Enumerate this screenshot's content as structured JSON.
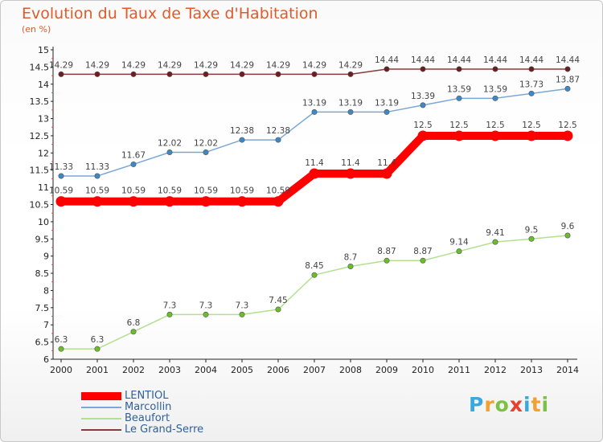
{
  "header": {
    "title": "Evolution du Taux de Taxe d'Habitation",
    "subtitle": "(en %)"
  },
  "logo": {
    "letters": [
      "P",
      "r",
      "o",
      "x",
      "i",
      "t",
      "i"
    ],
    "colors": [
      "#3aa8e0",
      "#f4a030",
      "#7bc144",
      "#e8402a",
      "#3aa8e0",
      "#f4a030",
      "#7bc144"
    ]
  },
  "chart_data": {
    "type": "line",
    "title": "Evolution du Taux de Taxe d'Habitation",
    "ylabel": "(en %)",
    "x": [
      "2000",
      "2001",
      "2002",
      "2003",
      "2004",
      "2005",
      "2006",
      "2007",
      "2008",
      "2009",
      "2010",
      "2011",
      "2012",
      "2013",
      "2014"
    ],
    "ylim": [
      6,
      15
    ],
    "yticks": [
      "6",
      "6.5",
      "7",
      "7.5",
      "8",
      "8.5",
      "9",
      "9.5",
      "10",
      "10.5",
      "11",
      "11.5",
      "12",
      "12.5",
      "13",
      "13.5",
      "14",
      "14.5",
      "15"
    ],
    "grid": false,
    "legend_position": "bottom-left",
    "series": [
      {
        "name": "LENTIOL",
        "color": "#ff0000",
        "values": [
          10.59,
          10.59,
          10.59,
          10.59,
          10.59,
          10.59,
          10.59,
          11.4,
          11.4,
          11.4,
          12.5,
          12.5,
          12.5,
          12.5,
          12.5
        ],
        "labels": [
          "10.59",
          "10.59",
          "10.59",
          "10.59",
          "10.59",
          "10.59",
          "10.59",
          "11.4",
          "11.4",
          "11.4",
          "12.5",
          "12.5",
          "12.5",
          "12.5",
          "12.5"
        ]
      },
      {
        "name": "Marcollin",
        "color": "#7ba7d6",
        "point_color": "#3d88c7",
        "values": [
          11.33,
          11.33,
          11.67,
          12.02,
          12.02,
          12.38,
          12.38,
          13.19,
          13.19,
          13.19,
          13.39,
          13.59,
          13.59,
          13.73,
          13.87
        ],
        "labels": [
          "11.33",
          "11.33",
          "11.67",
          "12.02",
          "12.02",
          "12.38",
          "12.38",
          "13.19",
          "13.19",
          "13.19",
          "13.39",
          "13.59",
          "13.59",
          "13.73",
          "13.87"
        ]
      },
      {
        "name": "Beaufort",
        "color": "#b3e090",
        "point_color": "#6bbd2b",
        "values": [
          6.3,
          6.3,
          6.8,
          7.3,
          7.3,
          7.3,
          7.45,
          8.45,
          8.7,
          8.87,
          8.87,
          9.14,
          9.41,
          9.5,
          9.6
        ],
        "labels": [
          "6.3",
          "6.3",
          "6.8",
          "7.3",
          "7.3",
          "7.3",
          "7.45",
          "8.45",
          "8.7",
          "8.87",
          "8.87",
          "9.14",
          "9.41",
          "9.5",
          "9.6"
        ]
      },
      {
        "name": "Le Grand-Serre",
        "color": "#8a3a3a",
        "point_color": "#6b1e1e",
        "values": [
          14.29,
          14.29,
          14.29,
          14.29,
          14.29,
          14.29,
          14.29,
          14.29,
          14.29,
          14.44,
          14.44,
          14.44,
          14.44,
          14.44,
          14.44
        ],
        "labels": [
          "14.29",
          "14.29",
          "14.29",
          "14.29",
          "14.29",
          "14.29",
          "14.29",
          "14.29",
          "14.29",
          "14.44",
          "14.44",
          "14.44",
          "14.44",
          "14.44",
          "14.44"
        ]
      }
    ]
  }
}
